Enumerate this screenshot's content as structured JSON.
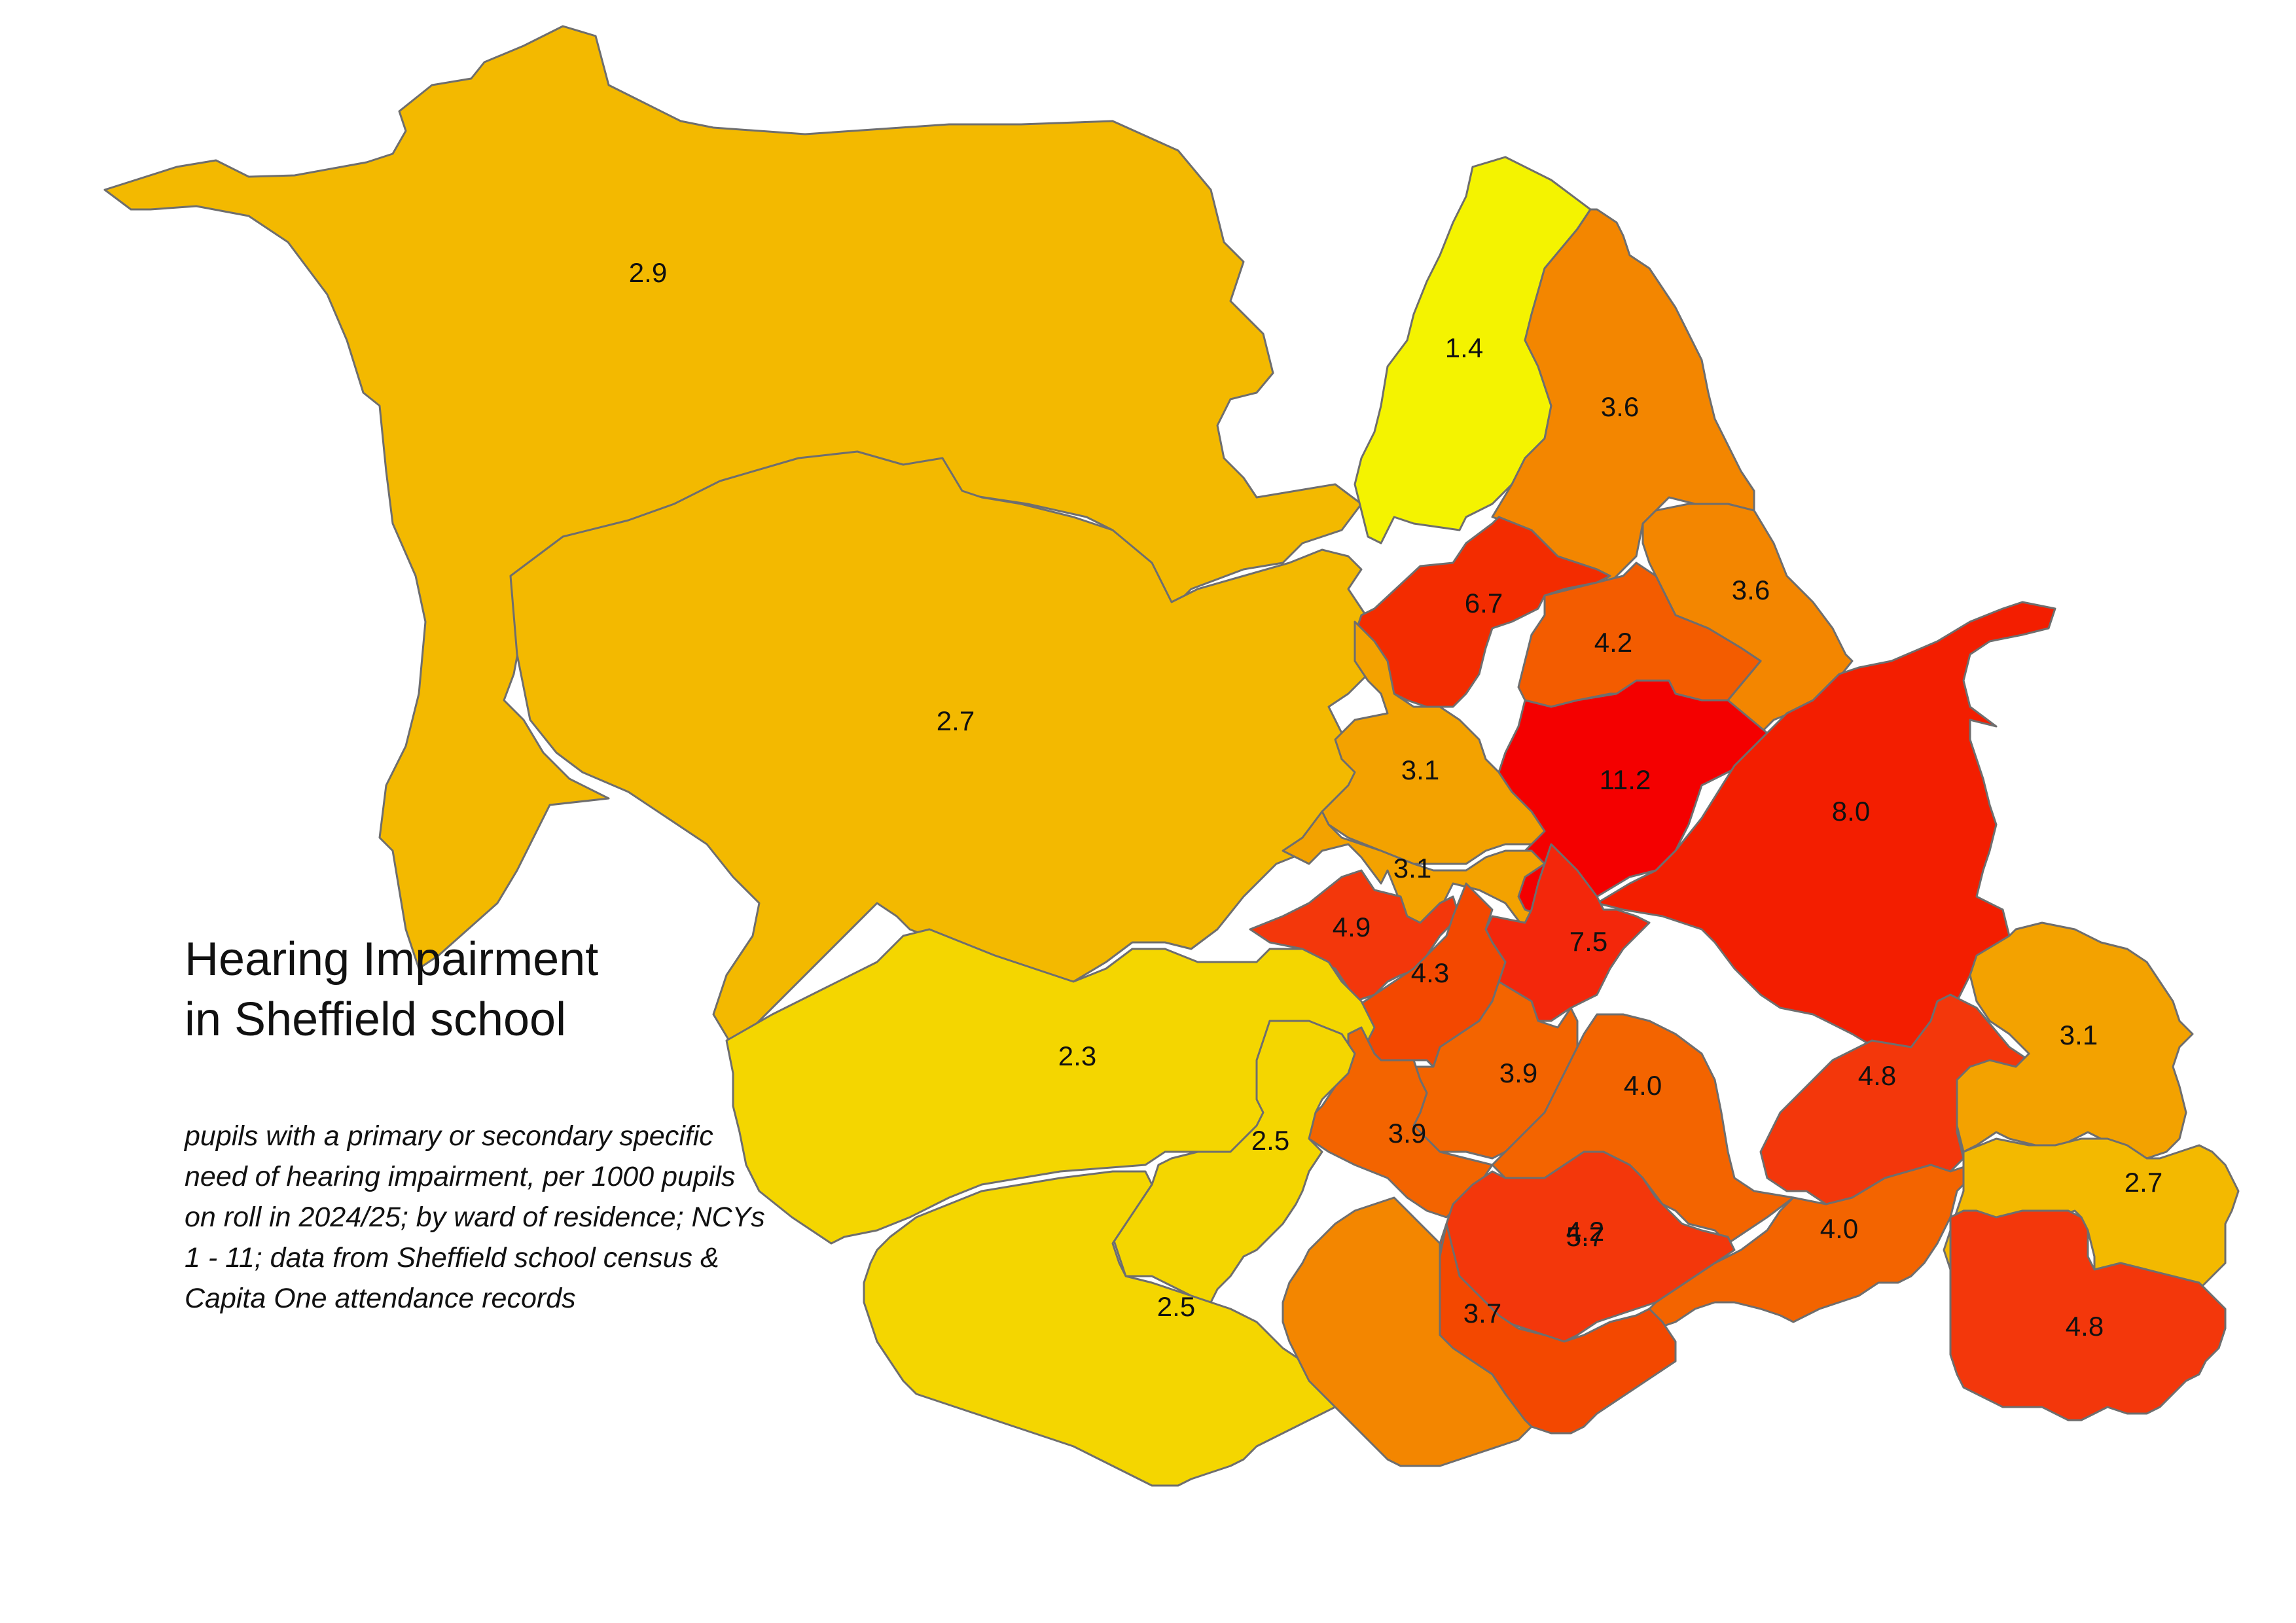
{
  "title": "Hearing Impairment\nin Sheffield school",
  "subtitle": "pupils with a primary or secondary specific need of hearing impairment, per 1000 pupils on roll in 2024/25; by ward of residence; NCYs 1 - 11; data from Sheffield school census & Capita One attendance records",
  "wards": [
    {
      "label": "2.9",
      "value": 2.9
    },
    {
      "label": "2.7",
      "value": 2.7
    },
    {
      "label": "1.4",
      "value": 1.4
    },
    {
      "label": "3.6",
      "value": 3.6
    },
    {
      "label": "3.6",
      "value": 3.6
    },
    {
      "label": "6.7",
      "value": 6.7
    },
    {
      "label": "4.2",
      "value": 4.2
    },
    {
      "label": "3.1",
      "value": 3.1
    },
    {
      "label": "11.2",
      "value": 11.2
    },
    {
      "label": "8.0",
      "value": 8.0
    },
    {
      "label": "3.1",
      "value": 3.1
    },
    {
      "label": "4.9",
      "value": 4.9
    },
    {
      "label": "7.5",
      "value": 7.5
    },
    {
      "label": "4.3",
      "value": 4.3
    },
    {
      "label": "3.9",
      "value": 3.9
    },
    {
      "label": "2.3",
      "value": 2.3
    },
    {
      "label": "3.9",
      "value": 3.9
    },
    {
      "label": "4.0",
      "value": 4.0
    },
    {
      "label": "4.8",
      "value": 4.8
    },
    {
      "label": "3.1",
      "value": 3.1
    },
    {
      "label": "2.5",
      "value": 2.5
    },
    {
      "label": "5.7",
      "value": 5.7
    },
    {
      "label": "4.0",
      "value": 4.0
    },
    {
      "label": "2.7",
      "value": 2.7
    },
    {
      "label": "4.2",
      "value": 4.2
    },
    {
      "label": "2.5",
      "value": 2.5
    },
    {
      "label": "3.7",
      "value": 3.7
    },
    {
      "label": "4.8",
      "value": 4.8
    }
  ]
}
